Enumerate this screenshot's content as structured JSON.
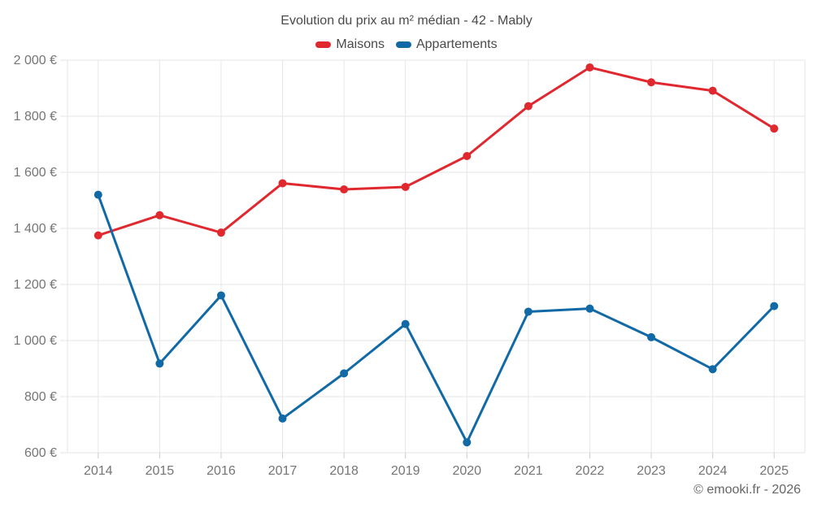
{
  "title": "Evolution du prix au m² médian - 42 - Mably",
  "footer_credit": "© emooki.fr - 2026",
  "legend": {
    "items": [
      {
        "label": "Maisons",
        "color": "#e0282f"
      },
      {
        "label": "Appartements",
        "color": "#1169a6"
      }
    ]
  },
  "chart_data": {
    "type": "line",
    "title": "Evolution du prix au m² médian - 42 - Mably",
    "categories": [
      "2014",
      "2015",
      "2016",
      "2017",
      "2018",
      "2019",
      "2020",
      "2021",
      "2022",
      "2023",
      "2024",
      "2025"
    ],
    "series": [
      {
        "name": "Maisons",
        "color": "#e0282f",
        "values": [
          1375,
          1447,
          1385,
          1561,
          1539,
          1548,
          1658,
          1836,
          1974,
          1921,
          1891,
          1756
        ]
      },
      {
        "name": "Appartements",
        "color": "#1169a6",
        "values": [
          1520,
          918,
          1161,
          722,
          883,
          1059,
          637,
          1103,
          1114,
          1012,
          898,
          1123
        ]
      }
    ],
    "xlabel": "",
    "ylabel": "",
    "ylim": [
      600,
      2000
    ],
    "ytick_step": 200,
    "ytick_labels": [
      "600 €",
      "800 €",
      "1 000 €",
      "1 200 €",
      "1 400 €",
      "1 600 €",
      "1 800 €",
      "2 000 €"
    ],
    "grid": true,
    "legend_position": "top",
    "currency": "€",
    "gridline_color": "#e6e6e6",
    "axis_label_color": "#757575"
  }
}
